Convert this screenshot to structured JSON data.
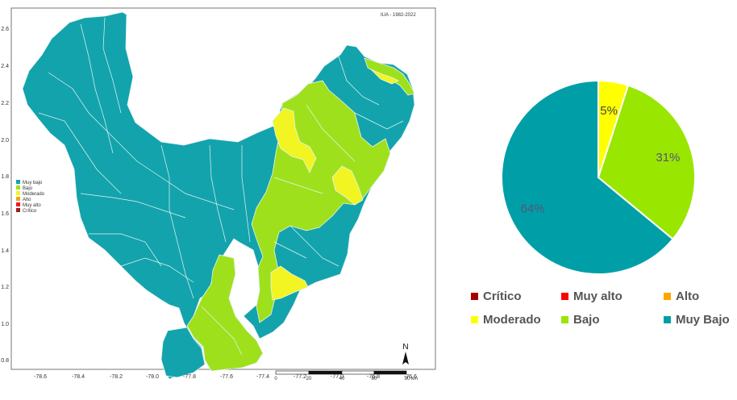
{
  "map": {
    "period_label": "IUA - 1982-2022",
    "north_label": "N",
    "x_ticks": [
      "-78.6",
      "-78.4",
      "-78.2",
      "-78.0",
      "-77.8",
      "-77.6",
      "-77.4",
      "-77.2",
      "-77.0",
      "-76.8",
      "-76.6"
    ],
    "y_ticks": [
      "2.6",
      "2.4",
      "2.2",
      "2.0",
      "1.8",
      "1.6",
      "1.4",
      "1.2",
      "1.0",
      "0.8"
    ],
    "scale_labels": [
      "0",
      "20",
      "40",
      "60",
      "80 km"
    ],
    "legend": [
      {
        "label": "Muy bajo",
        "color": "#13a3ac"
      },
      {
        "label": "Bajo",
        "color": "#9fe01c"
      },
      {
        "label": "Moderado",
        "color": "#f2f521"
      },
      {
        "label": "Alto",
        "color": "#f7a21b"
      },
      {
        "label": "Muy alto",
        "color": "#ee1c25"
      },
      {
        "label": "Crítico",
        "color": "#a11b1b"
      }
    ],
    "colors": {
      "muy_bajo": "#13a3ac",
      "bajo": "#9fe01c",
      "moderado": "#f2f521",
      "boundary": "#e6f4f5"
    }
  },
  "chart_data": {
    "type": "pie",
    "slices": [
      {
        "label": "Moderado",
        "value": 5,
        "text": "5%",
        "color": "#ffff00"
      },
      {
        "label": "Bajo",
        "value": 31,
        "text": "31%",
        "color": "#99e600"
      },
      {
        "label": "Muy Bajo",
        "value": 64,
        "text": "64%",
        "color": "#009fa8"
      }
    ],
    "legend": [
      {
        "label": "Crítico",
        "color": "#a50000"
      },
      {
        "label": "Muy alto",
        "color": "#ff0000"
      },
      {
        "label": "Alto",
        "color": "#ffa500"
      },
      {
        "label": "Moderado",
        "color": "#ffff00"
      },
      {
        "label": "Bajo",
        "color": "#99e600"
      },
      {
        "label": "Muy Bajo",
        "color": "#009fa8"
      }
    ],
    "legend_position": "bottom"
  }
}
